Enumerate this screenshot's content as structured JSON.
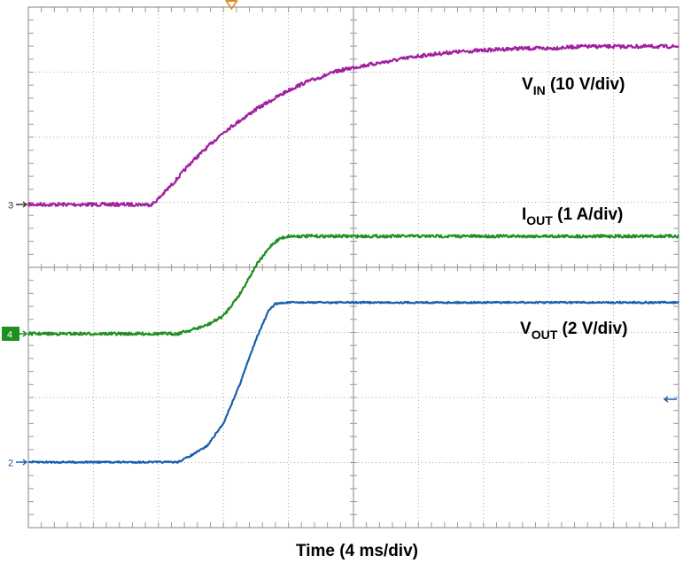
{
  "chart_data": {
    "type": "line",
    "title": "",
    "xlabel": "Time (4 ms/div)",
    "ylabel": "",
    "grid": true,
    "divisions": {
      "x": 10,
      "y": 8
    },
    "xlim": [
      0,
      40
    ],
    "x_unit": "ms",
    "colors": {
      "grid": "#a8a8a8",
      "frame": "#9a9a9a",
      "trigger_marker": "#e08a1e"
    },
    "series": [
      {
        "id": "vin",
        "name_main": "V",
        "name_sub": "IN",
        "name_rest": " (10 V/div)",
        "scale": "10 V/div",
        "channel": "3",
        "color": "#a020a0",
        "noise": 2.0,
        "x": [
          0,
          4,
          7.6,
          8,
          9,
          10,
          11,
          12,
          13,
          14,
          15,
          16,
          17,
          18,
          19,
          20,
          22,
          24,
          26,
          28,
          30,
          32,
          34,
          36,
          38,
          40
        ],
        "values": [
          0,
          0,
          0,
          0.03,
          0.12,
          0.22,
          0.3,
          0.38,
          0.44,
          0.5,
          0.55,
          0.6,
          0.64,
          0.67,
          0.7,
          0.72,
          0.75,
          0.78,
          0.8,
          0.81,
          0.82,
          0.82,
          0.83,
          0.83,
          0.83,
          0.83
        ]
      },
      {
        "id": "iout",
        "name_main": "I",
        "name_sub": "OUT",
        "name_rest": " (1 A/div)",
        "scale": "1 A/div",
        "channel": "4",
        "color": "#1f8f1f",
        "noise": 1.6,
        "x": [
          0,
          4,
          8,
          9.2,
          9.6,
          10,
          11,
          12,
          13,
          14,
          15,
          15.5,
          16,
          20,
          24,
          28,
          32,
          36,
          40
        ],
        "values": [
          0,
          0,
          0,
          0,
          0.03,
          0.05,
          0.12,
          0.25,
          0.55,
          0.95,
          1.25,
          1.33,
          1.36,
          1.36,
          1.36,
          1.36,
          1.36,
          1.36,
          1.36
        ]
      },
      {
        "id": "vout",
        "name_main": "V",
        "name_sub": "OUT",
        "name_rest": " (2 V/div)",
        "scale": "2 V/div",
        "channel": "2",
        "color": "#1a5fae",
        "noise": 0.9,
        "x": [
          0,
          4,
          8,
          9.2,
          10,
          11,
          12,
          13,
          14,
          14.8,
          15.2,
          16,
          20,
          24,
          28,
          32,
          36,
          40
        ],
        "values": [
          0,
          0,
          0,
          0,
          0.1,
          0.25,
          0.6,
          1.2,
          1.9,
          2.35,
          2.45,
          2.47,
          2.47,
          2.47,
          2.47,
          2.47,
          2.47,
          2.47
        ]
      }
    ],
    "channel_markers": [
      {
        "label": "3",
        "series": "vin",
        "style": "plain",
        "color": "#333333"
      },
      {
        "label": "4",
        "series": "iout",
        "style": "box",
        "color": "#1f8f1f"
      },
      {
        "label": "2",
        "series": "vout",
        "style": "plain",
        "color": "#1a5fae"
      }
    ],
    "trigger_level_marker": {
      "color": "#1a5fae"
    }
  }
}
